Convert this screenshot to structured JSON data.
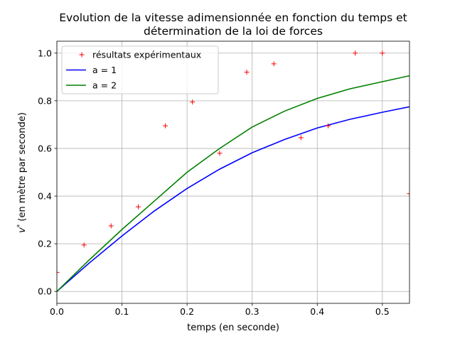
{
  "chart_data": {
    "type": "line",
    "title": [
      "Evolution de la vitesse adimensionnée en fonction du temps et",
      "détermination de la loi de forces"
    ],
    "xlabel": "temps (en seconde)",
    "ylabel": {
      "symbol": "v",
      "superscript": "*",
      "rest": " (en mètre par seconde)"
    },
    "xlim": [
      0,
      0.5417
    ],
    "ylim": [
      -0.05,
      1.05
    ],
    "xticks": [
      0.0,
      0.1,
      0.2,
      0.3,
      0.4,
      0.5
    ],
    "yticks": [
      0.0,
      0.2,
      0.4,
      0.6,
      0.8,
      1.0
    ],
    "xtick_labels": [
      "0.0",
      "0.1",
      "0.2",
      "0.3",
      "0.4",
      "0.5"
    ],
    "ytick_labels": [
      "0.0",
      "0.2",
      "0.4",
      "0.6",
      "0.8",
      "1.0"
    ],
    "grid": true,
    "legend_position": "top-left",
    "series": [
      {
        "name": "résultats expérimentaux",
        "kind": "scatter",
        "marker": "+",
        "color": "#ff0000",
        "x": [
          0.0,
          0.0417,
          0.0833,
          0.125,
          0.1667,
          0.2083,
          0.25,
          0.2917,
          0.3333,
          0.375,
          0.4167,
          0.4583,
          0.5,
          0.5417
        ],
        "y": [
          0.08,
          0.195,
          0.275,
          0.355,
          0.695,
          0.795,
          0.58,
          0.92,
          0.955,
          0.645,
          0.695,
          1.0,
          1.0,
          0.41
        ]
      },
      {
        "name": "a = 1",
        "kind": "line",
        "color": "#0000ff",
        "x": [
          0.0,
          0.05,
          0.1,
          0.15,
          0.2,
          0.25,
          0.3,
          0.35,
          0.4,
          0.45,
          0.5,
          0.5417
        ],
        "y": [
          0.0,
          0.12,
          0.233,
          0.338,
          0.432,
          0.513,
          0.582,
          0.638,
          0.686,
          0.722,
          0.752,
          0.775
        ]
      },
      {
        "name": "a = 2",
        "kind": "line",
        "color": "#008000",
        "x": [
          0.0,
          0.05,
          0.1,
          0.15,
          0.2,
          0.25,
          0.3,
          0.35,
          0.4,
          0.45,
          0.5,
          0.5417
        ],
        "y": [
          0.0,
          0.133,
          0.26,
          0.38,
          0.5,
          0.6,
          0.69,
          0.757,
          0.81,
          0.85,
          0.88,
          0.905
        ]
      }
    ]
  }
}
